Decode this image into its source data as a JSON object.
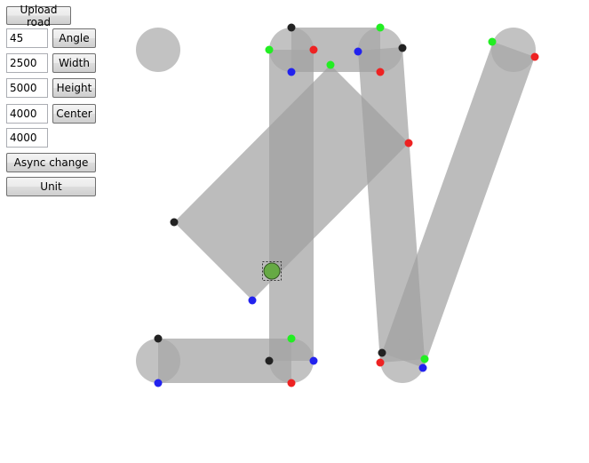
{
  "toolbar": {
    "upload_label": "Upload road",
    "angle": {
      "value": "45",
      "label": "Angle"
    },
    "width": {
      "value": "2500",
      "label": "Width"
    },
    "height": {
      "value": "5000",
      "label": "Height"
    },
    "center": {
      "value": "4000",
      "label": "Center"
    },
    "center_y_value": "4000",
    "async_label": "Async change",
    "unit_label": "Unit"
  },
  "colors": {
    "road_fill": "#a0a0a0",
    "handle_fill": "#a8a8a8",
    "handle_black": "#222222",
    "handle_green": "#22ee22",
    "handle_red": "#ee2222",
    "handle_blue": "#2222ee",
    "center_marker": "#66aa44"
  }
}
